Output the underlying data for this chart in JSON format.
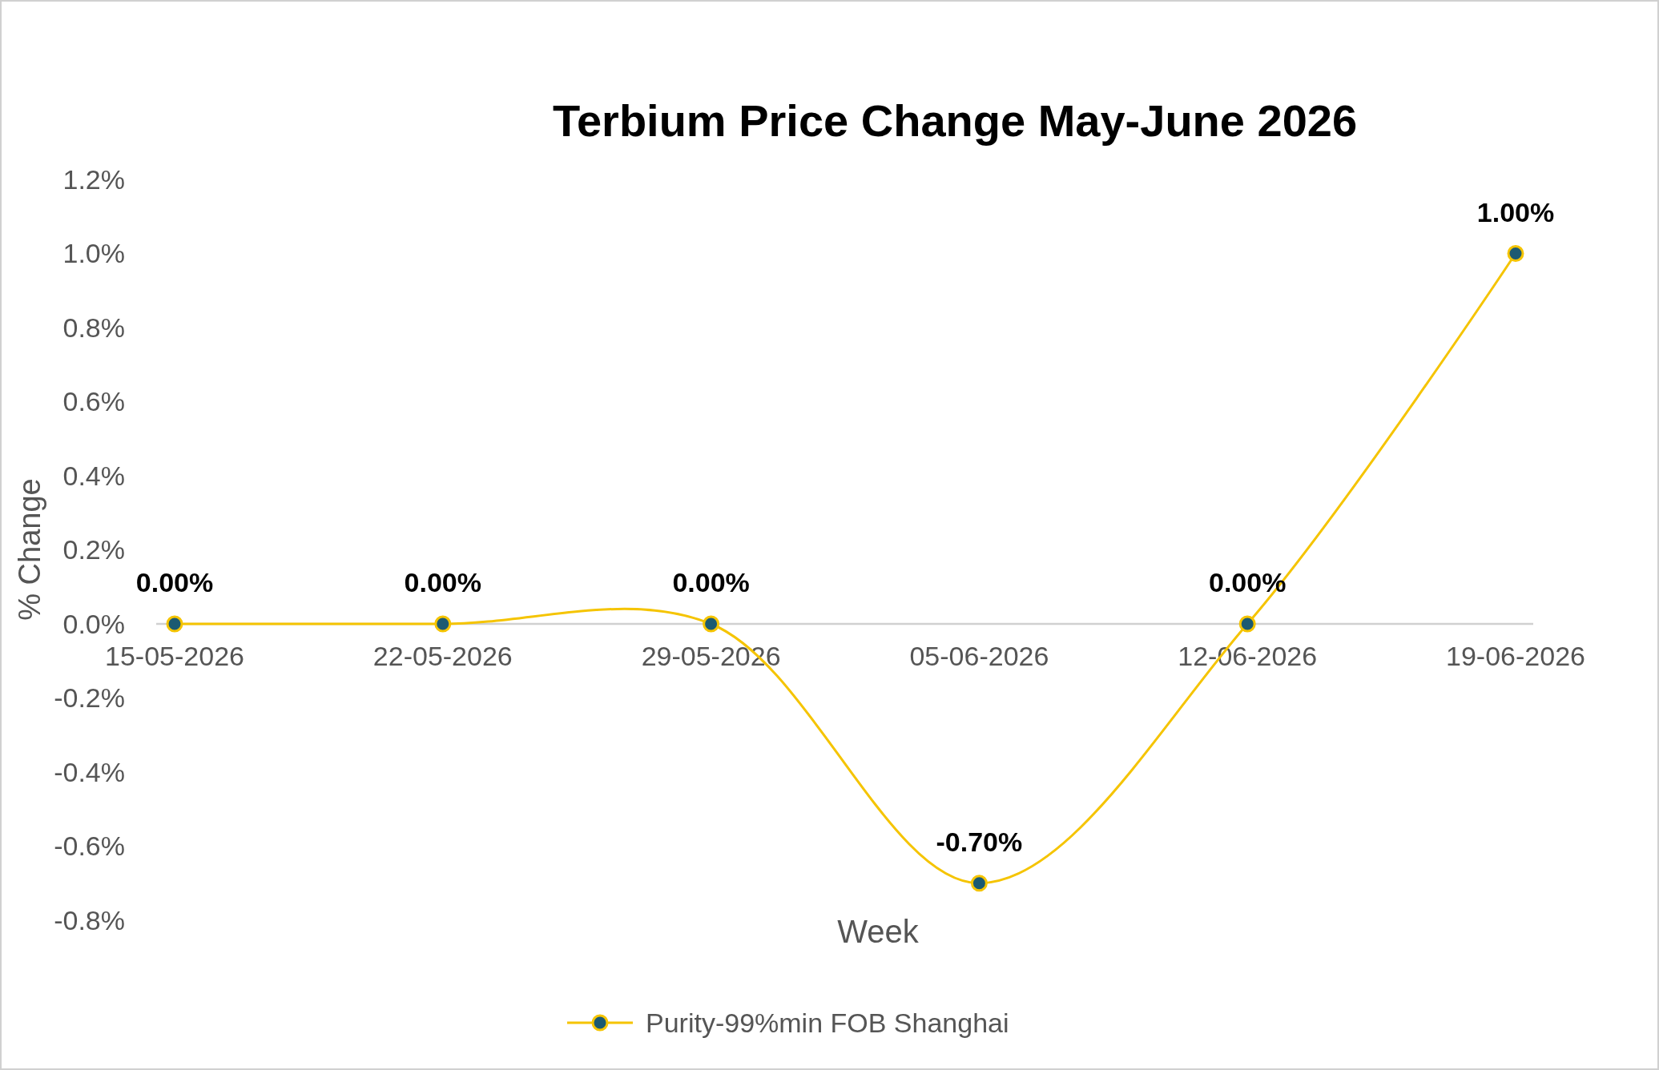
{
  "chart_data": {
    "type": "line",
    "title": "Terbium Price Change May-June 2026",
    "xlabel": "Week",
    "ylabel": "% Change",
    "categories": [
      "15-05-2026",
      "22-05-2026",
      "29-05-2026",
      "05-06-2026",
      "12-06-2026",
      "19-06-2026"
    ],
    "series": [
      {
        "name": "Purity-99%min FOB Shanghai",
        "color": "#f5c400",
        "values": [
          0,
          0,
          0,
          -0.7,
          0,
          1.0
        ],
        "value_labels": [
          "0.00%",
          "0.00%",
          "0.00%",
          "-0.70%",
          "0.00%",
          "1.00%"
        ]
      }
    ],
    "ylim": [
      -0.8,
      1.2
    ],
    "yticks": [
      {
        "value": -0.8,
        "label": "-0.8%"
      },
      {
        "value": -0.6,
        "label": "-0.6%"
      },
      {
        "value": -0.4,
        "label": "-0.4%"
      },
      {
        "value": -0.2,
        "label": "-0.2%"
      },
      {
        "value": 0,
        "label": "0.0%"
      },
      {
        "value": 0.2,
        "label": "0.2%"
      },
      {
        "value": 0.4,
        "label": "0.4%"
      },
      {
        "value": 0.6,
        "label": "0.6%"
      },
      {
        "value": 0.8,
        "label": "0.8%"
      },
      {
        "value": 1.0,
        "label": "1.0%"
      },
      {
        "value": 1.2,
        "label": "1.2%"
      }
    ],
    "marker": "circle",
    "legend": "bottom",
    "grid": false
  }
}
